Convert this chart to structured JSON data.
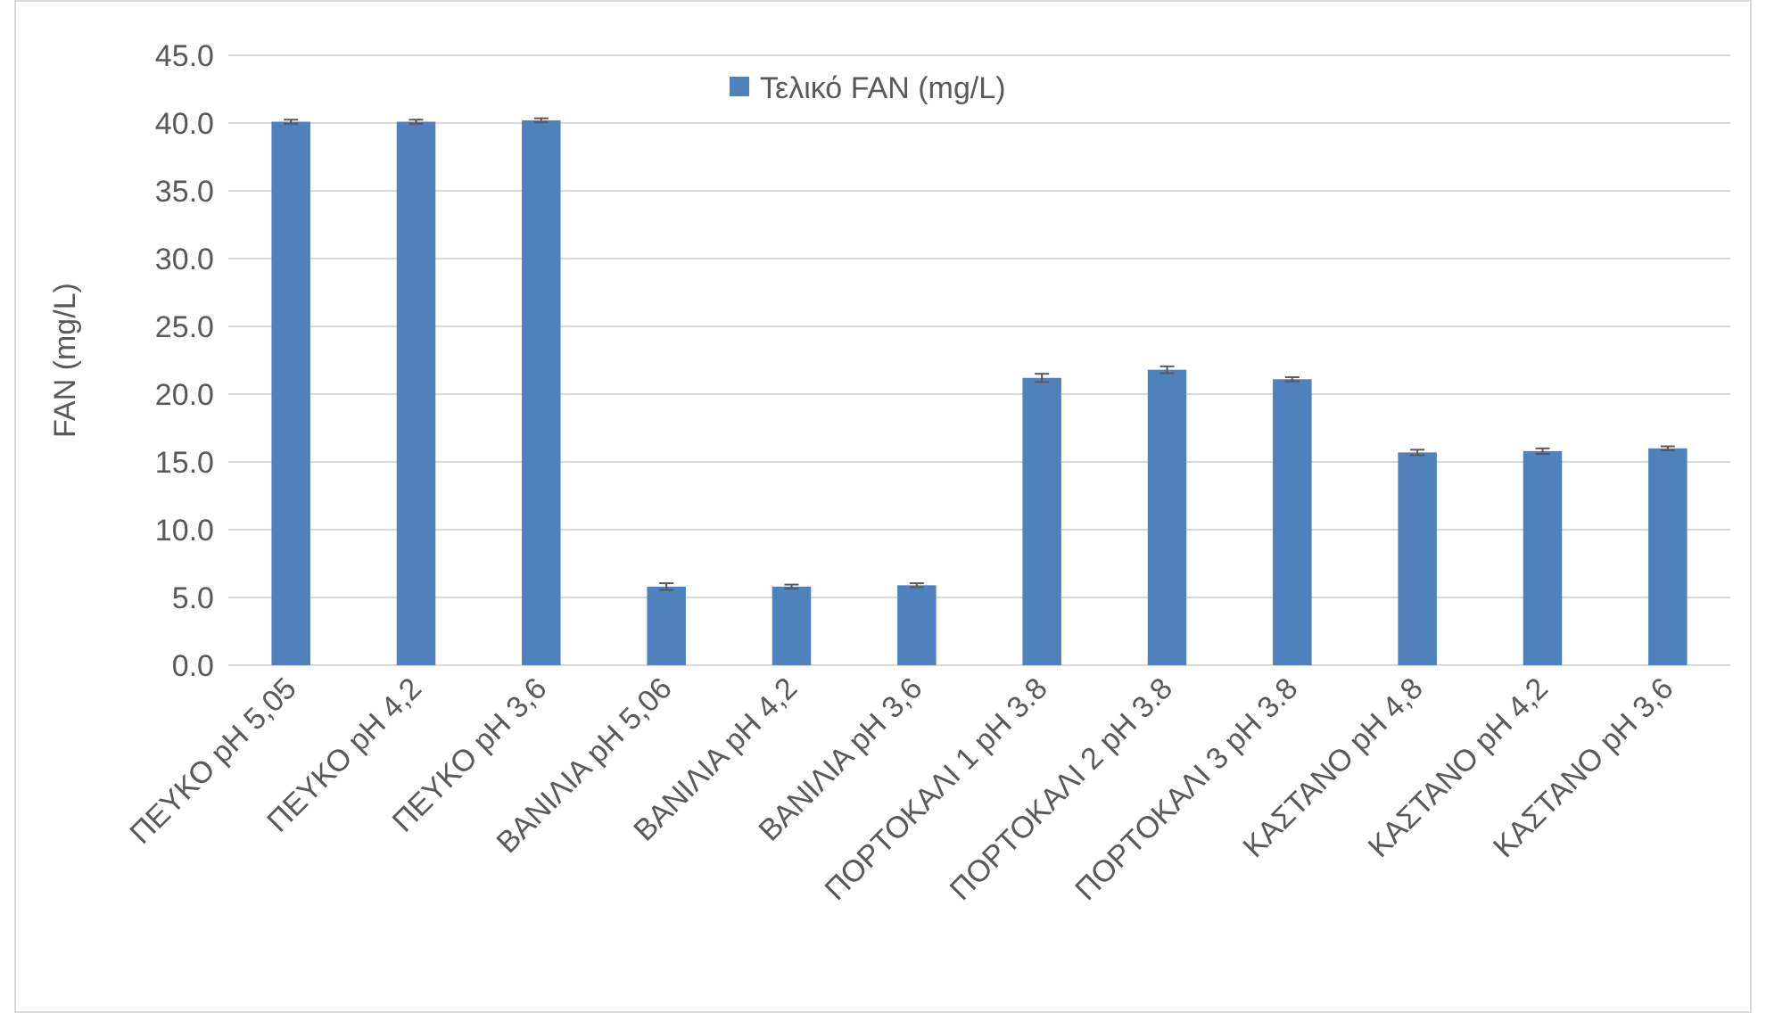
{
  "chart_data": {
    "type": "bar",
    "ylabel": "FAN (mg/L)",
    "categories": [
      "ΠΕΥΚΟ pH 5,05",
      "ΠΕΥΚΟ pH 4,2",
      "ΠΕΥΚΟ pH 3,6",
      "ΒΑΝΙΛΙΑ pH 5,06",
      "ΒΑΝΙΛΙΑ pH 4,2",
      "ΒΑΝΙΛΙΑ pH 3,6",
      "ΠΟΡΤΟΚΑΛΙ 1 pH 3.8",
      "ΠΟΡΤΟΚΑΛΙ 2 pH 3.8",
      "ΠΟΡΤΟΚΑΛΙ 3 pH 3.8",
      "ΚΑΣΤΑΝΟ pH 4,8",
      "ΚΑΣΤΑΝΟ pH 4,2",
      "ΚΑΣΤΑΝΟ pH 3,6"
    ],
    "series": [
      {
        "name": "Τελικό FAN (mg/L)",
        "color": "#4f81bd",
        "values": [
          40.1,
          40.1,
          40.2,
          5.8,
          5.8,
          5.9,
          21.2,
          21.8,
          21.1,
          15.7,
          15.8,
          16.0
        ],
        "errors": [
          0.15,
          0.15,
          0.15,
          0.25,
          0.15,
          0.15,
          0.3,
          0.25,
          0.15,
          0.2,
          0.2,
          0.15
        ]
      }
    ],
    "ylim": [
      0,
      45
    ],
    "yticks": [
      {
        "value": 0,
        "label": "0.0"
      },
      {
        "value": 5,
        "label": "5.0"
      },
      {
        "value": 10,
        "label": "10.0"
      },
      {
        "value": 15,
        "label": "15.0"
      },
      {
        "value": 20,
        "label": "20.0"
      },
      {
        "value": 25,
        "label": "25.0"
      },
      {
        "value": 30,
        "label": "30.0"
      },
      {
        "value": 35,
        "label": "35.0"
      },
      {
        "value": 40,
        "label": "40.0"
      },
      {
        "value": 45,
        "label": "45.0"
      }
    ],
    "grid": "y",
    "legend": "top"
  }
}
